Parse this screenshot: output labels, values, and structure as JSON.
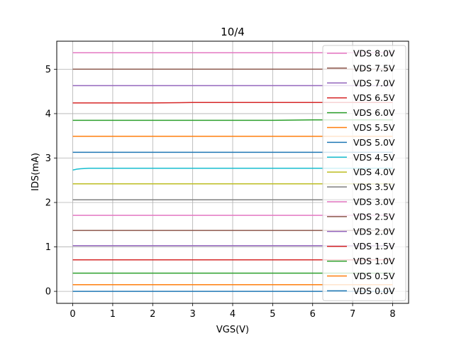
{
  "chart_data": {
    "type": "line",
    "title": "10/4",
    "xlabel": "VGS(V)",
    "ylabel": "IDS(mA)",
    "xlim": [
      -0.4,
      8.4
    ],
    "ylim": [
      -0.27,
      5.63
    ],
    "xticks": [
      0,
      1,
      2,
      3,
      4,
      5,
      6,
      7,
      8
    ],
    "yticks": [
      0,
      1,
      2,
      3,
      4,
      5
    ],
    "grid": true,
    "legend_position": "right",
    "x": [
      0,
      0.1,
      0.2,
      0.4,
      1,
      2,
      3,
      4,
      5,
      6,
      7,
      8
    ],
    "series": [
      {
        "name": "VDS 0.0V",
        "color": "#1f77b4",
        "values": [
          0.0,
          0.0,
          0.0,
          0.0,
          0.0,
          0.0,
          0.0,
          0.0,
          0.0,
          0.0,
          0.0,
          0.0
        ]
      },
      {
        "name": "VDS 0.5V",
        "color": "#ff7f0e",
        "values": [
          0.15,
          0.15,
          0.15,
          0.15,
          0.15,
          0.15,
          0.15,
          0.15,
          0.15,
          0.15,
          0.15,
          0.15
        ]
      },
      {
        "name": "VDS 1.0V",
        "color": "#2ca02c",
        "values": [
          0.41,
          0.41,
          0.41,
          0.41,
          0.41,
          0.41,
          0.41,
          0.41,
          0.41,
          0.41,
          0.41,
          0.41
        ]
      },
      {
        "name": "VDS 1.5V",
        "color": "#d62728",
        "values": [
          0.71,
          0.71,
          0.71,
          0.71,
          0.71,
          0.71,
          0.71,
          0.71,
          0.71,
          0.71,
          0.71,
          0.71
        ]
      },
      {
        "name": "VDS 2.0V",
        "color": "#9467bd",
        "values": [
          1.03,
          1.03,
          1.03,
          1.03,
          1.03,
          1.03,
          1.03,
          1.03,
          1.03,
          1.03,
          1.03,
          1.03
        ]
      },
      {
        "name": "VDS 2.5V",
        "color": "#8c564b",
        "values": [
          1.37,
          1.37,
          1.37,
          1.37,
          1.37,
          1.37,
          1.37,
          1.37,
          1.37,
          1.37,
          1.37,
          1.37
        ]
      },
      {
        "name": "VDS 3.0V",
        "color": "#e377c2",
        "values": [
          1.71,
          1.71,
          1.71,
          1.71,
          1.71,
          1.71,
          1.71,
          1.71,
          1.71,
          1.71,
          1.71,
          1.71
        ]
      },
      {
        "name": "VDS 3.5V",
        "color": "#7f7f7f",
        "values": [
          2.06,
          2.06,
          2.06,
          2.06,
          2.06,
          2.06,
          2.06,
          2.06,
          2.06,
          2.06,
          2.06,
          2.06
        ]
      },
      {
        "name": "VDS 4.0V",
        "color": "#bcbd22",
        "values": [
          2.42,
          2.42,
          2.42,
          2.42,
          2.42,
          2.42,
          2.42,
          2.42,
          2.42,
          2.42,
          2.42,
          2.42
        ]
      },
      {
        "name": "VDS 4.5V",
        "color": "#17becf",
        "values": [
          2.73,
          2.75,
          2.76,
          2.77,
          2.77,
          2.77,
          2.77,
          2.77,
          2.77,
          2.77,
          2.77,
          2.77
        ]
      },
      {
        "name": "VDS 5.0V",
        "color": "#1f77b4",
        "values": [
          3.13,
          3.13,
          3.13,
          3.13,
          3.13,
          3.13,
          3.13,
          3.13,
          3.13,
          3.13,
          3.13,
          3.13
        ]
      },
      {
        "name": "VDS 5.5V",
        "color": "#ff7f0e",
        "values": [
          3.49,
          3.49,
          3.49,
          3.49,
          3.49,
          3.49,
          3.49,
          3.49,
          3.49,
          3.49,
          3.49,
          3.49
        ]
      },
      {
        "name": "VDS 6.0V",
        "color": "#2ca02c",
        "values": [
          3.85,
          3.85,
          3.85,
          3.85,
          3.85,
          3.85,
          3.85,
          3.85,
          3.85,
          3.86,
          3.86,
          3.86
        ]
      },
      {
        "name": "VDS 6.5V",
        "color": "#d62728",
        "values": [
          4.24,
          4.24,
          4.24,
          4.24,
          4.24,
          4.24,
          4.25,
          4.25,
          4.25,
          4.25,
          4.25,
          4.25
        ]
      },
      {
        "name": "VDS 7.0V",
        "color": "#9467bd",
        "values": [
          4.63,
          4.63,
          4.63,
          4.63,
          4.63,
          4.63,
          4.63,
          4.63,
          4.63,
          4.63,
          4.63,
          4.63
        ]
      },
      {
        "name": "VDS 7.5V",
        "color": "#8c564b",
        "values": [
          5.0,
          5.0,
          5.0,
          5.0,
          5.0,
          5.0,
          5.0,
          5.0,
          5.0,
          5.0,
          5.0,
          5.0
        ]
      },
      {
        "name": "VDS 8.0V",
        "color": "#e377c2",
        "values": [
          5.37,
          5.37,
          5.37,
          5.37,
          5.37,
          5.37,
          5.37,
          5.37,
          5.37,
          5.37,
          5.37,
          5.37
        ]
      }
    ]
  }
}
